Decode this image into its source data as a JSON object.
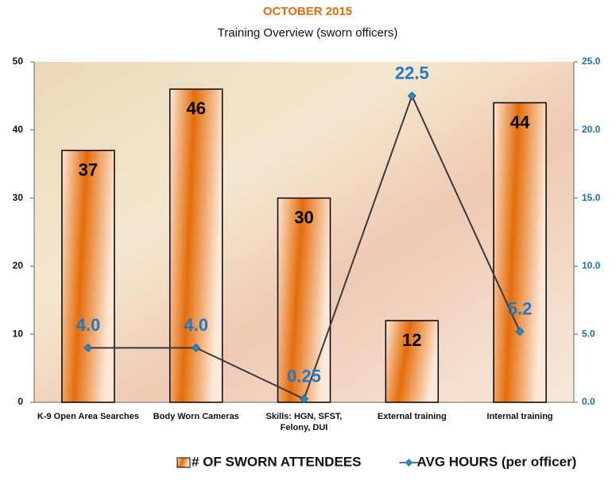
{
  "chart_data": {
    "type": "bar_line",
    "title": "OCTOBER 2015",
    "subtitle": "Training Overview (sworn officers)",
    "categories": [
      "K-9 Open Area Searches",
      "Body Worn Cameras",
      "Skills: HGN, SFST, Felony, DUI",
      "External training",
      "Internal training"
    ],
    "series": [
      {
        "name": "# OF SWORN ATTENDEES",
        "type": "bar",
        "color": "#e46c0a",
        "values": [
          37,
          46,
          30,
          12,
          44
        ]
      },
      {
        "name": "AVG HOURS (per officer)",
        "type": "line",
        "axis": "y2",
        "color": "#3a3a3a",
        "marker_color": "#2e86c1",
        "values": [
          4.0,
          4.0,
          0.25,
          22.5,
          5.2
        ],
        "value_labels": [
          "4.0",
          "4.0",
          "0.25",
          "22.5",
          "5.2"
        ]
      }
    ],
    "ylim": [
      0,
      50
    ],
    "yticks": [
      0,
      10,
      20,
      30,
      40,
      50
    ],
    "y2lim": [
      0,
      25
    ],
    "y2ticks": [
      {
        "value": 0,
        "label": "0.0"
      },
      {
        "value": 5,
        "label": "5.0"
      },
      {
        "value": 10,
        "label": "10.0"
      },
      {
        "value": 15,
        "label": "15.0"
      },
      {
        "value": 20,
        "label": "20.0"
      },
      {
        "value": 25,
        "label": "25.0"
      }
    ],
    "legend": "bottom"
  }
}
